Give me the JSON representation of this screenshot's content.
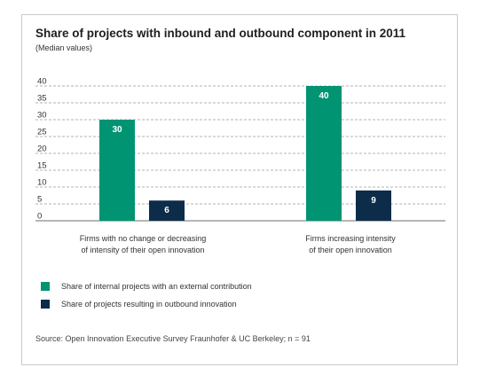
{
  "title": "Share of projects with inbound and outbound component in 2011",
  "subtitle": "(Median values)",
  "chart_data": {
    "type": "bar",
    "categories": [
      "Firms with no change or decreasing of intensity of their open innovation",
      "Firms increasing intensity of their open innovation"
    ],
    "category_lines": [
      [
        "Firms with no change or decreasing",
        "of intensity of their open innovation"
      ],
      [
        "Firms increasing intensity",
        "of their open innovation"
      ]
    ],
    "series": [
      {
        "name": "Share of internal projects with an external contribution",
        "values": [
          30,
          40
        ],
        "color": "#009473"
      },
      {
        "name": "Share of projects resulting in outbound innovation",
        "values": [
          6,
          9
        ],
        "color": "#0c2c4a"
      }
    ],
    "yticks": [
      0,
      5,
      10,
      15,
      20,
      25,
      30,
      35,
      40
    ],
    "ylim": [
      0,
      40
    ],
    "grid": true,
    "legend_position": "bottom-left"
  },
  "legend": [
    {
      "label": "Share of internal projects with an external contribution",
      "color": "#009473"
    },
    {
      "label": "Share of projects resulting in outbound innovation",
      "color": "#0c2c4a"
    }
  ],
  "source": "Source: Open Innovation Executive Survey Fraunhofer & UC Berkeley; n = 91"
}
